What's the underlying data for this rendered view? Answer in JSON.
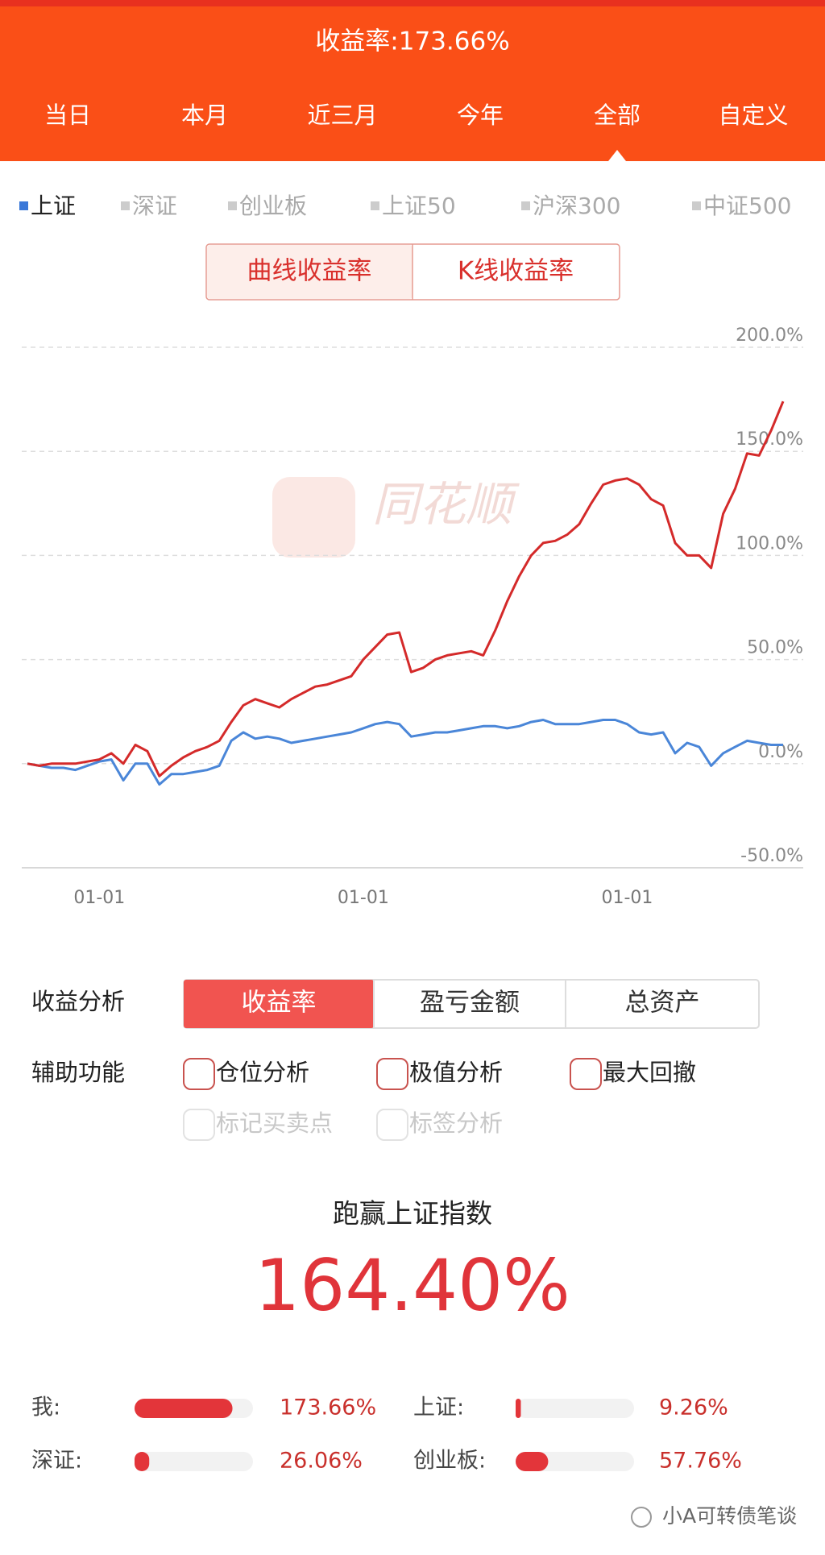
{
  "header": {
    "title": "收益率:173.66%",
    "tabs": [
      "当日",
      "本月",
      "近三月",
      "今年",
      "全部",
      "自定义"
    ],
    "active_tab": 4
  },
  "index_tabs": {
    "items": [
      "上证",
      "深证",
      "创业板",
      "上证50",
      "沪深300",
      "中证500"
    ],
    "active": 0
  },
  "chart_mode": {
    "items": [
      "曲线收益率",
      "K线收益率"
    ],
    "active": 0
  },
  "chart_data": {
    "type": "line",
    "watermark": "同花顺",
    "categories": [
      null,
      null,
      null,
      null,
      null,
      null,
      "01-01",
      null,
      null,
      null,
      null,
      null,
      null,
      null,
      null,
      null,
      null,
      null,
      null,
      null,
      null,
      null,
      null,
      null,
      null,
      null,
      null,
      null,
      "01-01",
      null,
      null,
      null,
      null,
      null,
      null,
      null,
      null,
      null,
      null,
      null,
      null,
      null,
      null,
      null,
      null,
      null,
      null,
      null,
      null,
      null,
      "01-01",
      null,
      null,
      null,
      null,
      null,
      null,
      null,
      null,
      null,
      null,
      null,
      null,
      null
    ],
    "series": [
      {
        "color": "#d42a2a",
        "values": [
          0,
          -1,
          0,
          0,
          0,
          1,
          2,
          5,
          0,
          9,
          6,
          -6,
          -1,
          3,
          6,
          8,
          11,
          20,
          28,
          31,
          29,
          27,
          31,
          34,
          37,
          38,
          40,
          42,
          50,
          56,
          62,
          63,
          44,
          46,
          50,
          52,
          53,
          54,
          52,
          64,
          78,
          90,
          100,
          106,
          107,
          110,
          115,
          125,
          134,
          136,
          137,
          134,
          127,
          124,
          106,
          100,
          100,
          94,
          120,
          132,
          149,
          148,
          160,
          174
        ]
      },
      {
        "color": "#4a86d8",
        "values": [
          0,
          -1,
          -2,
          -2,
          -3,
          -1,
          1,
          2,
          -8,
          0,
          0,
          -10,
          -5,
          -5,
          -4,
          -3,
          -1,
          11,
          15,
          12,
          13,
          12,
          10,
          11,
          12,
          13,
          14,
          15,
          17,
          19,
          20,
          19,
          13,
          14,
          15,
          15,
          16,
          17,
          18,
          18,
          17,
          18,
          20,
          21,
          19,
          19,
          19,
          20,
          21,
          21,
          19,
          15,
          14,
          15,
          5,
          10,
          8,
          -1,
          5,
          8,
          11,
          10,
          9,
          9
        ]
      }
    ],
    "ylim": [
      -50,
      200
    ],
    "yticks": [
      {
        "value": -50,
        "label": "-50.0%"
      },
      {
        "value": 0,
        "label": "0.0%"
      },
      {
        "value": 50,
        "label": "50.0%"
      },
      {
        "value": 100,
        "label": "100.0%"
      },
      {
        "value": 150,
        "label": "150.0%"
      },
      {
        "value": 200,
        "label": "200.0%"
      }
    ],
    "grid": true
  },
  "analysis": {
    "label": "收益分析",
    "options": [
      "收益率",
      "盈亏金额",
      "总资产"
    ],
    "active": 0
  },
  "aux": {
    "label": "辅助功能",
    "options": [
      {
        "label": "仓位分析",
        "enabled": true
      },
      {
        "label": "极值分析",
        "enabled": true
      },
      {
        "label": "最大回撤",
        "enabled": true
      },
      {
        "label": "标记买卖点",
        "enabled": false
      },
      {
        "label": "标签分析",
        "enabled": false
      }
    ]
  },
  "summary": {
    "title": "跑赢上证指数",
    "value": "164.40%"
  },
  "comparison": [
    {
      "label": "我:",
      "value": 173.66,
      "value_label": "173.66%"
    },
    {
      "label": "上证:",
      "value": 9.26,
      "value_label": "9.26%"
    },
    {
      "label": "深证:",
      "value": 26.06,
      "value_label": "26.06%"
    },
    {
      "label": "创业板:",
      "value": 57.76,
      "value_label": "57.76%"
    }
  ],
  "footer": {
    "text": "小A可转债笔谈"
  }
}
